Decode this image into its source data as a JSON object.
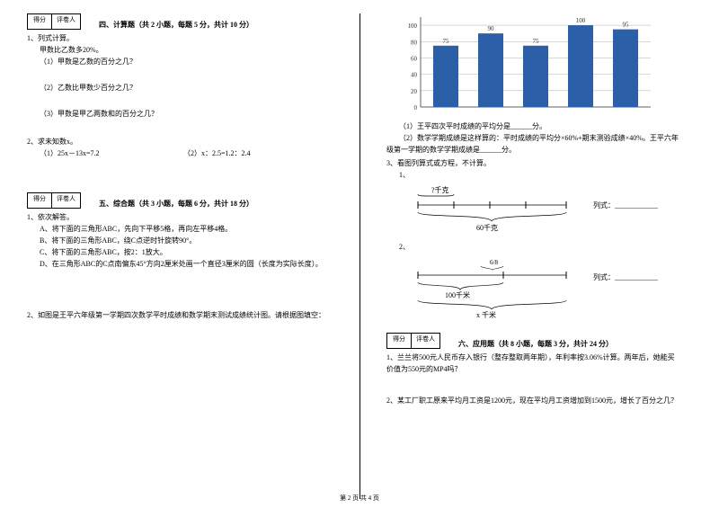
{
  "left": {
    "scorebox": {
      "a": "得分",
      "b": "评卷人"
    },
    "sec4": {
      "title": "四、计算题（共 2 小题，每题 5 分，共计 10 分）",
      "q1": "1、列式计算。",
      "q1_pre": "甲数比乙数多20%。",
      "q1_1": "（1）甲数是乙数的百分之几？",
      "q1_2": "（2）乙数比甲数少百分之几？",
      "q1_3": "（3）甲数是甲乙两数和的百分之几？",
      "q2": "2、求未知数x。",
      "q2_1": "（1）25x－13x=7.2",
      "q2_2": "（2）x：2.5=1.2：2.4"
    },
    "sec5": {
      "title": "五、综合题（共 3 小题，每题 6 分，共计 18 分）",
      "q1": "1、依次解答。",
      "q1_a": "A、将下面的三角形ABC，先向下平移5格，再向左平移4格。",
      "q1_b": "B、将下面的三角形ABC，绕C点逆时针旋转90°。",
      "q1_c": "C、将下面的三角形ABC，按2：1放大。",
      "q1_d": "D、在三角形ABC的C点南偏东45°方向2厘米处画一个直径3厘米的圆（长度为实际长度）。",
      "q2": "2、如图是王平六年级第一学期四次数学平时成绩和数学期末测试成绩统计图。请根据图填空："
    }
  },
  "right": {
    "chart": {
      "bars": [
        {
          "label": "",
          "value": 75,
          "color": "#2b5fa8"
        },
        {
          "label": "",
          "value": 90,
          "color": "#2b5fa8"
        },
        {
          "label": "",
          "value": 75,
          "color": "#2b5fa8"
        },
        {
          "label": "",
          "value": 100,
          "color": "#2b5fa8"
        },
        {
          "label": "",
          "value": 95,
          "color": "#2b5fa8"
        }
      ],
      "yTicks": [
        0,
        20,
        40,
        60,
        80,
        100
      ],
      "maxY": 110,
      "barWidth": 28,
      "barGap": 22,
      "axisColor": "#606060",
      "gridColor": "#b0b0b0",
      "labelFont": 7,
      "bg": "#ffffff"
    },
    "chart_q1": "（1）王平四次平时成绩的平均分是______分。",
    "chart_q2a": "（2）数学学期成绩是这样算的：平时成绩的平均分×60%+期末测验成绩×40%。王平六年",
    "chart_q2b": "级第一学期的数学学期成绩是______分。",
    "q3": "3、看图列算式或方程，不计算。",
    "d1": {
      "top": "?千克",
      "bottom": "60千克",
      "rhs": "列式：____________"
    },
    "d2": {
      "small": "6/8",
      "mid": "100千米",
      "bot": "x 千米",
      "rhs": "列式：____________"
    },
    "scorebox": {
      "a": "得分",
      "b": "评卷人"
    },
    "sec6": {
      "title": "六、应用题（共 8 小题，每题 3 分，共计 24 分）",
      "q1a": "1、兰兰将500元人民币存入银行（整存整取两年期），年利率按3.06%计算。两年后，她能买",
      "q1b": "价值为550元的MP4吗？",
      "q2": "2、某工厂职工原来平均月工资是1200元，现在平均月工资增加到1500元，增长了百分之几？"
    }
  },
  "footer": "第 2 页 共 4 页"
}
